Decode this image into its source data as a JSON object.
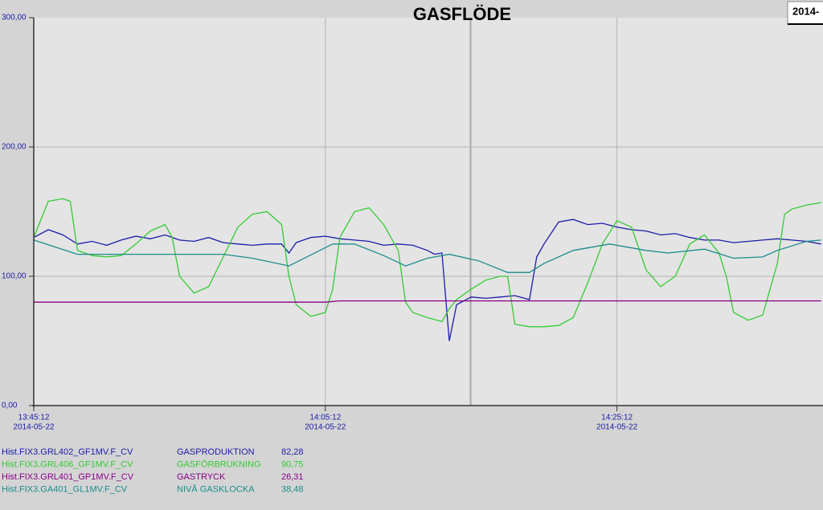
{
  "chart_data": {
    "type": "line",
    "title": "GASFLÖDE",
    "corner_label": "2014-",
    "xlim": [
      "13:45:12",
      "14:39:20"
    ],
    "xticks": [
      {
        "value": "13:45:12",
        "label": "13:45:12"
      },
      {
        "value": "14:05:12",
        "label": "14:05:12"
      },
      {
        "value": "14:25:12",
        "label": "14:25:12"
      }
    ],
    "xtick_dates": [
      "2014-05-22",
      "2014-05-22",
      "2014-05-22"
    ],
    "ylim": [
      0,
      300
    ],
    "yticks": [
      {
        "value": 0,
        "label": "0,00"
      },
      {
        "value": 100,
        "label": "100,00"
      },
      {
        "value": 200,
        "label": "200,00"
      },
      {
        "value": 300,
        "label": "300,00"
      }
    ],
    "grid": true,
    "series": [
      {
        "tag": "Hist.FIX3.GRL402_GF1MV.F_CV",
        "name": "GASPRODUKTION",
        "legend_value": "82,28",
        "color": "#1c1ca8",
        "x": [
          "13:45:12",
          "13:46:12",
          "13:47:12",
          "13:48:12",
          "13:49:12",
          "13:50:12",
          "13:51:12",
          "13:52:12",
          "13:53:12",
          "13:54:12",
          "13:55:12",
          "13:56:12",
          "13:57:12",
          "13:58:12",
          "13:59:12",
          "14:00:12",
          "14:01:12",
          "14:02:12",
          "14:02:42",
          "14:03:12",
          "14:04:12",
          "14:05:12",
          "14:06:12",
          "14:07:12",
          "14:08:12",
          "14:09:12",
          "14:10:12",
          "14:11:12",
          "14:12:12",
          "14:12:42",
          "14:13:12",
          "14:13:42",
          "14:14:12",
          "14:15:12",
          "14:16:12",
          "14:17:12",
          "14:18:12",
          "14:19:12",
          "14:19:42",
          "14:20:12",
          "14:21:12",
          "14:22:12",
          "14:23:12",
          "14:24:12",
          "14:25:12",
          "14:26:12",
          "14:27:12",
          "14:28:12",
          "14:29:12",
          "14:30:12",
          "14:31:12",
          "14:32:12",
          "14:33:12",
          "14:34:12",
          "14:35:12",
          "14:36:12",
          "14:37:12",
          "14:38:12",
          "14:39:12"
        ],
        "values": [
          130,
          136,
          132,
          125,
          127,
          124,
          128,
          131,
          129,
          132,
          128,
          127,
          130,
          126,
          125,
          124,
          125,
          125,
          118,
          126,
          130,
          131,
          129,
          128,
          127,
          124,
          125,
          124,
          120,
          117,
          118,
          50,
          78,
          84,
          83,
          84,
          85,
          82,
          115,
          125,
          142,
          144,
          140,
          141,
          138,
          136,
          135,
          132,
          133,
          130,
          128,
          128,
          126,
          127,
          128,
          129,
          128,
          127,
          125
        ]
      },
      {
        "tag": "Hist.FIX3.GRL406_GF1MV.F_CV",
        "name": "GASFÖRBRUKNING",
        "legend_value": "90,75",
        "color": "#33cc33",
        "x": [
          "13:45:12",
          "13:46:12",
          "13:47:12",
          "13:47:42",
          "13:48:12",
          "13:49:12",
          "13:50:12",
          "13:51:12",
          "13:52:12",
          "13:53:12",
          "13:54:12",
          "13:54:42",
          "13:55:12",
          "13:56:12",
          "13:57:12",
          "13:58:12",
          "13:59:12",
          "14:00:12",
          "14:01:12",
          "14:02:12",
          "14:02:42",
          "14:03:12",
          "14:04:12",
          "14:05:12",
          "14:05:42",
          "14:06:12",
          "14:07:12",
          "14:08:12",
          "14:09:12",
          "14:10:12",
          "14:10:42",
          "14:11:12",
          "14:12:12",
          "14:13:12",
          "14:13:42",
          "14:14:12",
          "14:15:12",
          "14:16:12",
          "14:17:12",
          "14:17:42",
          "14:18:12",
          "14:19:12",
          "14:20:12",
          "14:21:12",
          "14:22:12",
          "14:23:12",
          "14:24:12",
          "14:25:12",
          "14:26:12",
          "14:27:12",
          "14:28:12",
          "14:29:12",
          "14:30:12",
          "14:31:12",
          "14:32:12",
          "14:32:42",
          "14:33:12",
          "14:34:12",
          "14:35:12",
          "14:36:12",
          "14:36:42",
          "14:37:12",
          "14:38:12",
          "14:39:12"
        ],
        "values": [
          130,
          158,
          160,
          158,
          120,
          116,
          115,
          116,
          125,
          135,
          140,
          130,
          100,
          87,
          92,
          115,
          138,
          148,
          150,
          140,
          100,
          78,
          69,
          72,
          90,
          130,
          150,
          153,
          140,
          120,
          80,
          72,
          68,
          65,
          75,
          82,
          90,
          97,
          100,
          100,
          63,
          61,
          61,
          62,
          68,
          95,
          125,
          143,
          138,
          105,
          92,
          100,
          125,
          132,
          118,
          100,
          72,
          66,
          70,
          110,
          148,
          152,
          155,
          157
        ]
      },
      {
        "tag": "Hist.FIX3.GRL401_GP1MV.F_CV",
        "name": "GASTRYCK",
        "legend_value": "26,31",
        "color": "#880088",
        "x": [
          "13:45:12",
          "14:05:12",
          "14:06:12",
          "14:39:12"
        ],
        "values": [
          80,
          80,
          81,
          81
        ]
      },
      {
        "tag": "Hist.FIX3.GA401_GL1MV.F_CV",
        "name": "NIVÅ GASKLOCKA",
        "legend_value": "38,48",
        "color": "#1a8c8c",
        "x": [
          "13:45:12",
          "13:48:12",
          "13:58:12",
          "14:00:12",
          "14:02:42",
          "14:05:42",
          "14:07:12",
          "14:09:12",
          "14:10:42",
          "14:12:12",
          "14:13:42",
          "14:15:42",
          "14:17:42",
          "14:19:12",
          "14:20:12",
          "14:22:12",
          "14:24:42",
          "14:27:12",
          "14:28:42",
          "14:31:12",
          "14:33:12",
          "14:35:12",
          "14:36:12",
          "14:38:12",
          "14:39:12"
        ],
        "values": [
          128,
          117,
          117,
          114,
          108,
          125,
          125,
          116,
          108,
          114,
          117,
          112,
          103,
          103,
          110,
          120,
          125,
          120,
          118,
          121,
          114,
          115,
          120,
          127,
          128
        ]
      }
    ]
  }
}
